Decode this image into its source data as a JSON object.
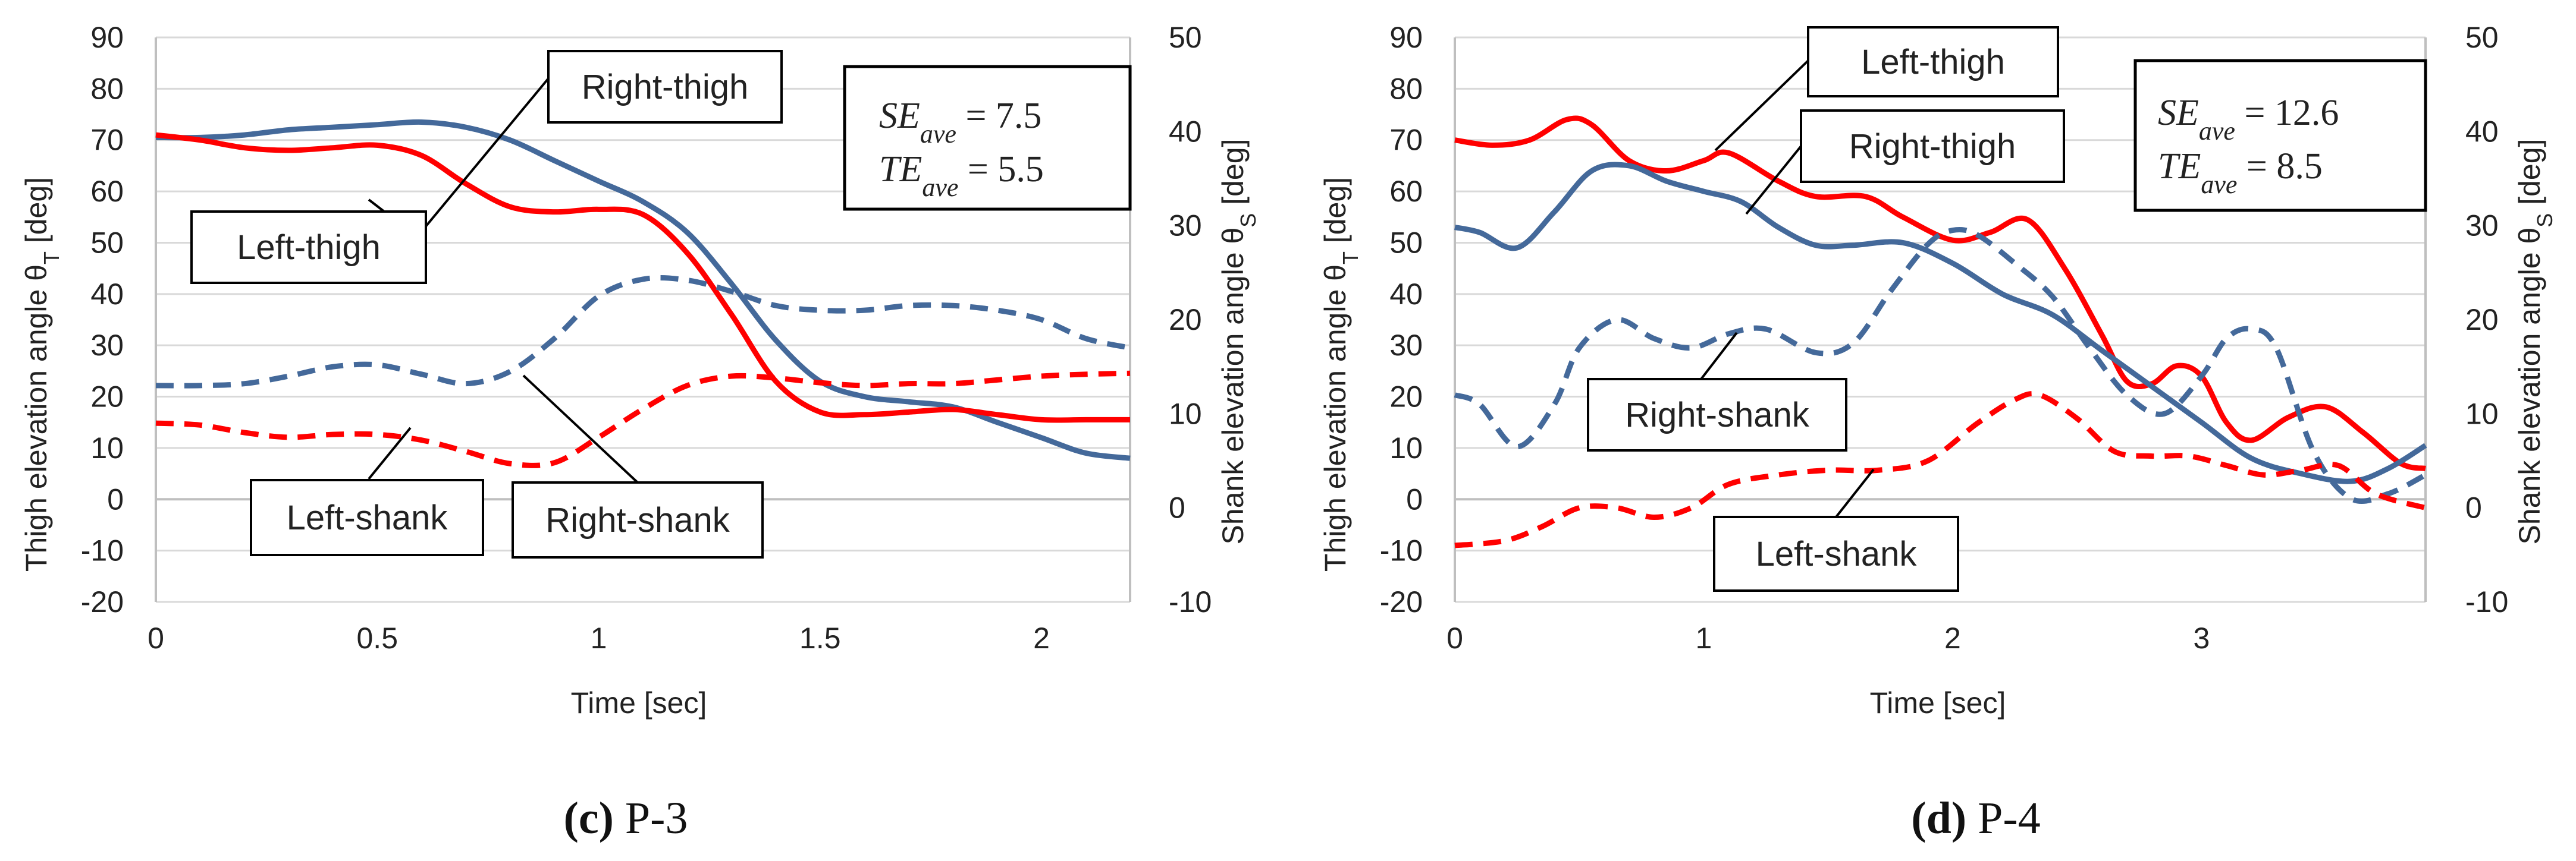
{
  "colors": {
    "thigh_series": "#ff0000",
    "shank_series": "#ff0000",
    "blue_series": "#44699a",
    "red_series": "#ff0000",
    "grid": "#d9d9d9",
    "axis": "#bfbfbf"
  },
  "chart_data": [
    {
      "type": "line",
      "caption": {
        "letter": "(c)",
        "text": " P-3"
      },
      "xlabel": "Time [sec]",
      "ylabel_left": "Thigh elevation angle θT [deg]",
      "ylabel_left_main": "Thigh elevation angle θ",
      "ylabel_left_sub": "T",
      "ylabel_left_unit": " [deg]",
      "ylabel_right": "Shank elevation angle θS [deg]",
      "ylabel_right_main": "Shank elevation angle θ",
      "ylabel_right_sub": "S",
      "ylabel_right_unit": " [deg]",
      "xlim": [
        0,
        2.2
      ],
      "ylim_left": [
        -20,
        90
      ],
      "ylim_right": [
        -10,
        50
      ],
      "xticks": [
        0,
        0.5,
        1,
        1.5,
        2
      ],
      "xtick_labels": [
        "0",
        "0.5",
        "1",
        "1.5",
        "2"
      ],
      "yticks_left": [
        90,
        80,
        70,
        60,
        50,
        40,
        30,
        20,
        10,
        0,
        -10,
        -20
      ],
      "ytick_left_labels": [
        "90",
        "80",
        "70",
        "60",
        "50",
        "40",
        "30",
        "20",
        "10",
        "0",
        "-10",
        "-20"
      ],
      "yticks_right": [
        50,
        40,
        30,
        20,
        10,
        0,
        -10
      ],
      "ytick_right_labels": [
        "50",
        "40",
        "30",
        "20",
        "10",
        "0",
        "-10"
      ],
      "stats": {
        "se_label": "SE",
        "se_sub": "ave",
        "se_value": " = 7.5",
        "te_label": "TE",
        "te_sub": "ave",
        "te_value": " = 5.5"
      },
      "series": [
        {
          "name": "Right-thigh",
          "axis": "left",
          "color": "#44699a",
          "dash": false,
          "x": [
            0,
            0.1,
            0.2,
            0.3,
            0.4,
            0.5,
            0.6,
            0.7,
            0.8,
            0.9,
            1.0,
            1.1,
            1.2,
            1.3,
            1.4,
            1.5,
            1.6,
            1.7,
            1.8,
            1.9,
            2.0,
            2.1,
            2.2
          ],
          "y": [
            70.5,
            70.5,
            71,
            72,
            72.5,
            73,
            73.5,
            72.5,
            70,
            66,
            62,
            58,
            52,
            42,
            31,
            23,
            20,
            19,
            18,
            15,
            12,
            9,
            8
          ]
        },
        {
          "name": "Left-thigh",
          "axis": "left",
          "color": "#ff0000",
          "dash": false,
          "x": [
            0,
            0.1,
            0.2,
            0.3,
            0.4,
            0.5,
            0.6,
            0.7,
            0.8,
            0.9,
            1.0,
            1.1,
            1.2,
            1.3,
            1.4,
            1.5,
            1.6,
            1.7,
            1.8,
            1.9,
            2.0,
            2.1,
            2.2
          ],
          "y": [
            71,
            70,
            68.5,
            68,
            68.5,
            69,
            67,
            61.5,
            57,
            56,
            56.5,
            55.5,
            48,
            36,
            23,
            17,
            16.5,
            17,
            17.5,
            16.5,
            15.5,
            15.5,
            15.5
          ]
        },
        {
          "name": "Right-shank",
          "axis": "right",
          "color": "#44699a",
          "dash": true,
          "x": [
            0,
            0.1,
            0.2,
            0.3,
            0.4,
            0.5,
            0.6,
            0.7,
            0.8,
            0.9,
            1.0,
            1.1,
            1.2,
            1.3,
            1.4,
            1.5,
            1.6,
            1.7,
            1.8,
            1.9,
            2.0,
            2.1,
            2.2
          ],
          "y": [
            13,
            13,
            13.2,
            14,
            15,
            15.2,
            14.2,
            13.2,
            14.5,
            18,
            22.5,
            24.3,
            24.2,
            23,
            21.5,
            21,
            21,
            21.5,
            21.5,
            21,
            20,
            18,
            17
          ]
        },
        {
          "name": "Left-shank",
          "axis": "right",
          "color": "#ff0000",
          "dash": true,
          "x": [
            0,
            0.1,
            0.2,
            0.3,
            0.4,
            0.5,
            0.6,
            0.7,
            0.8,
            0.9,
            1.0,
            1.1,
            1.2,
            1.3,
            1.4,
            1.5,
            1.6,
            1.7,
            1.8,
            1.9,
            2.0,
            2.1,
            2.2
          ],
          "y": [
            9,
            8.8,
            8,
            7.5,
            7.8,
            7.8,
            7.2,
            6,
            4.7,
            4.8,
            7.5,
            10.5,
            13,
            14,
            13.8,
            13.3,
            13,
            13.2,
            13.2,
            13.6,
            14,
            14.2,
            14.3
          ]
        }
      ],
      "annotations": [
        {
          "label": "Right-thigh",
          "series": "Right-thigh"
        },
        {
          "label": "Left-thigh",
          "series": "Left-thigh"
        },
        {
          "label": "Left-shank",
          "series": "Left-shank"
        },
        {
          "label": "Right-shank",
          "series": "Right-shank"
        }
      ]
    },
    {
      "type": "line",
      "caption": {
        "letter": "(d)",
        "text": " P-4"
      },
      "xlabel": "Time [sec]",
      "ylabel_left": "Thigh elevation angle θT [deg]",
      "ylabel_left_main": "Thigh elevation angle θ",
      "ylabel_left_sub": "T",
      "ylabel_left_unit": " [deg]",
      "ylabel_right": "Shank elevation angle θS [deg]",
      "ylabel_right_main": "Shank elevation angle θ",
      "ylabel_right_sub": "S",
      "ylabel_right_unit": " [deg]",
      "xlim": [
        0,
        3.9
      ],
      "ylim_left": [
        -20,
        90
      ],
      "ylim_right": [
        -10,
        50
      ],
      "xticks": [
        0,
        1,
        2,
        3
      ],
      "xtick_labels": [
        "0",
        "1",
        "2",
        "3"
      ],
      "yticks_left": [
        90,
        80,
        70,
        60,
        50,
        40,
        30,
        20,
        10,
        0,
        -10,
        -20
      ],
      "ytick_left_labels": [
        "90",
        "80",
        "70",
        "60",
        "50",
        "40",
        "30",
        "20",
        "10",
        "0",
        "-10",
        "-20"
      ],
      "yticks_right": [
        50,
        40,
        30,
        20,
        10,
        0,
        -10
      ],
      "ytick_right_labels": [
        "50",
        "40",
        "30",
        "20",
        "10",
        "0",
        "-10"
      ],
      "stats": {
        "se_label": "SE",
        "se_sub": "ave",
        "se_value": " = 12.6",
        "te_label": "TE",
        "te_sub": "ave",
        "te_value": " = 8.5"
      },
      "series": [
        {
          "name": "Left-thigh",
          "axis": "left",
          "color": "#ff0000",
          "dash": false,
          "x": [
            0,
            0.15,
            0.3,
            0.45,
            0.55,
            0.7,
            0.85,
            1.0,
            1.1,
            1.3,
            1.45,
            1.65,
            1.8,
            2.0,
            2.15,
            2.3,
            2.45,
            2.6,
            2.7,
            2.8,
            2.9,
            3.0,
            3.1,
            3.2,
            3.35,
            3.5,
            3.65,
            3.8,
            3.9
          ],
          "y": [
            70,
            69,
            70,
            74,
            73,
            66,
            64,
            66,
            67.5,
            62,
            59,
            59,
            55,
            50.5,
            52,
            54.5,
            45,
            32,
            23,
            22.5,
            26,
            24,
            15,
            11.5,
            16,
            18,
            13,
            7,
            6
          ]
        },
        {
          "name": "Right-thigh",
          "axis": "left",
          "color": "#44699a",
          "dash": false,
          "x": [
            0,
            0.1,
            0.25,
            0.4,
            0.55,
            0.7,
            0.85,
            1.0,
            1.15,
            1.3,
            1.45,
            1.6,
            1.8,
            2.0,
            2.2,
            2.4,
            2.6,
            2.8,
            3.0,
            3.2,
            3.4,
            3.6,
            3.75,
            3.9
          ],
          "y": [
            53,
            52,
            49,
            56,
            64,
            65,
            62,
            60,
            58,
            53,
            49.5,
            49.5,
            50,
            46,
            40,
            36,
            29,
            22,
            15,
            8,
            5,
            3.5,
            6,
            10.5
          ]
        },
        {
          "name": "Right-shank",
          "axis": "right",
          "color": "#44699a",
          "dash": true,
          "x": [
            0,
            0.1,
            0.25,
            0.4,
            0.5,
            0.65,
            0.8,
            0.95,
            1.1,
            1.25,
            1.45,
            1.6,
            1.75,
            1.9,
            2.0,
            2.1,
            2.25,
            2.4,
            2.55,
            2.7,
            2.85,
            3.0,
            3.1,
            3.2,
            3.3,
            3.45,
            3.6,
            3.75,
            3.9
          ],
          "y": [
            12,
            11,
            6.5,
            11,
            17,
            20,
            18,
            17,
            18.5,
            19,
            16.5,
            17.5,
            23,
            28,
            29.5,
            29,
            26,
            22.5,
            17,
            12,
            10,
            14,
            18,
            19,
            17,
            6,
            1,
            1.5,
            3.5
          ]
        },
        {
          "name": "Left-shank",
          "axis": "right",
          "color": "#ff0000",
          "dash": true,
          "x": [
            0,
            0.2,
            0.35,
            0.5,
            0.65,
            0.8,
            0.95,
            1.1,
            1.3,
            1.5,
            1.7,
            1.9,
            2.1,
            2.25,
            2.35,
            2.5,
            2.65,
            2.8,
            2.95,
            3.1,
            3.25,
            3.4,
            3.55,
            3.7,
            3.9
          ],
          "y": [
            -4,
            -3.5,
            -2,
            0,
            0,
            -1,
            0,
            2.5,
            3.5,
            4,
            4,
            5,
            9,
            11.5,
            12,
            9.5,
            6,
            5.5,
            5.5,
            4.5,
            3.5,
            4,
            4.5,
            1.5,
            0
          ]
        }
      ],
      "annotations": [
        {
          "label": "Left-thigh",
          "series": "Left-thigh"
        },
        {
          "label": "Right-thigh",
          "series": "Right-thigh"
        },
        {
          "label": "Right-shank",
          "series": "Right-shank"
        },
        {
          "label": "Left-shank",
          "series": "Left-shank"
        }
      ]
    }
  ]
}
